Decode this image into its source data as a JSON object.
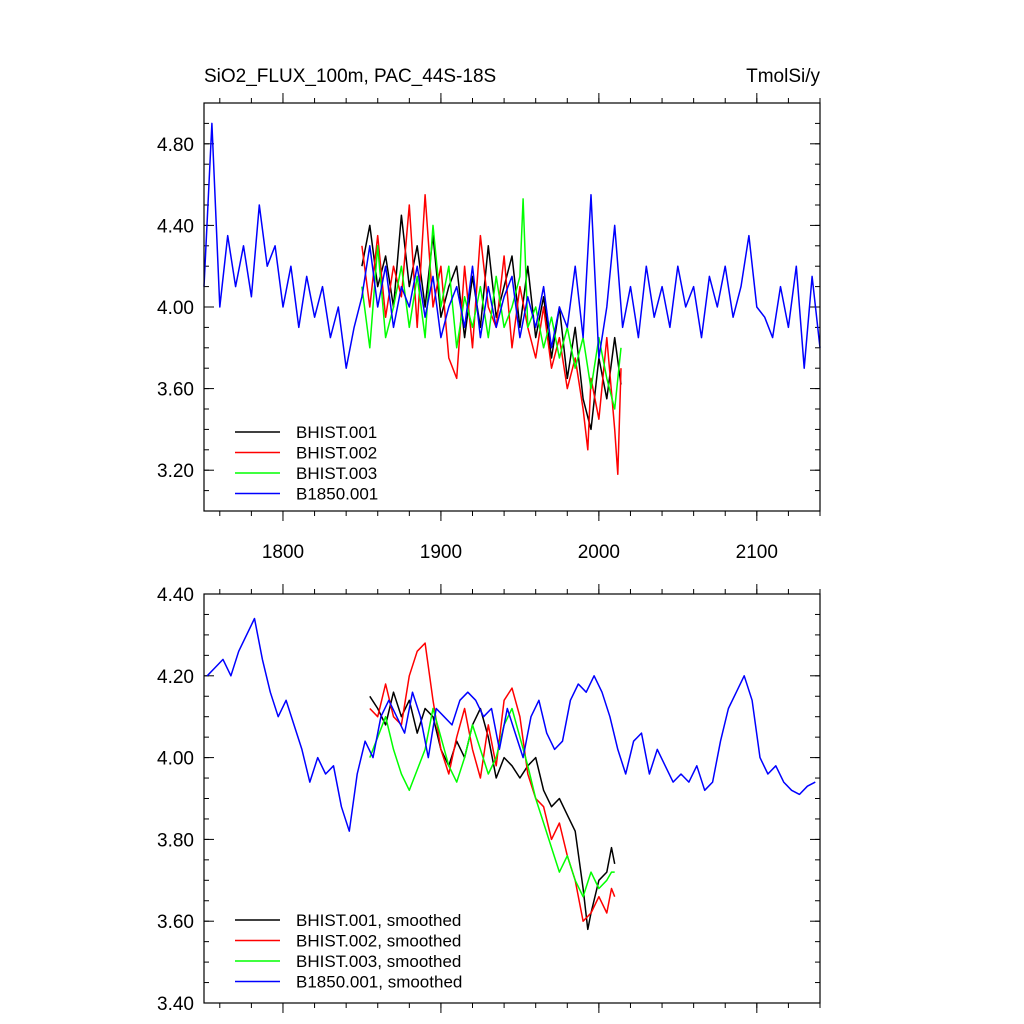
{
  "chart_data": [
    {
      "type": "line",
      "title": "SiO2_FLUX_100m, PAC_44S-18S",
      "units": "TmolSi/y",
      "xlim": [
        1750,
        2140
      ],
      "ylim": [
        3.0,
        5.0
      ],
      "xticks": [
        1800,
        1900,
        2000,
        2100
      ],
      "xtick_labels": [
        "1800",
        "1900",
        "2000",
        "2100"
      ],
      "yticks": [
        3.2,
        3.6,
        4.0,
        4.4,
        4.8
      ],
      "ytick_labels": [
        "3.20",
        "3.60",
        "4.00",
        "4.40",
        "4.80"
      ],
      "legend_position": "bottom-left",
      "series": [
        {
          "name": "BHIST.001",
          "color": "#000000",
          "x": [
            1850,
            1855,
            1860,
            1865,
            1870,
            1875,
            1880,
            1885,
            1890,
            1895,
            1900,
            1905,
            1910,
            1915,
            1920,
            1925,
            1930,
            1935,
            1940,
            1945,
            1950,
            1955,
            1960,
            1965,
            1970,
            1975,
            1980,
            1985,
            1990,
            1995,
            2000,
            2005,
            2010,
            2014
          ],
          "y": [
            4.2,
            4.4,
            4.1,
            4.25,
            4.0,
            4.45,
            4.1,
            4.3,
            4.0,
            4.35,
            3.95,
            4.1,
            4.2,
            3.85,
            4.15,
            3.9,
            4.3,
            3.95,
            4.1,
            4.25,
            3.9,
            4.2,
            3.85,
            4.05,
            3.75,
            4.0,
            3.65,
            3.9,
            3.55,
            3.4,
            3.75,
            3.55,
            3.85,
            3.62
          ]
        },
        {
          "name": "BHIST.002",
          "color": "#ff0000",
          "x": [
            1850,
            1855,
            1860,
            1865,
            1870,
            1875,
            1880,
            1885,
            1890,
            1895,
            1900,
            1905,
            1910,
            1915,
            1920,
            1925,
            1930,
            1935,
            1940,
            1945,
            1950,
            1955,
            1960,
            1965,
            1970,
            1975,
            1980,
            1985,
            1990,
            1993,
            1995,
            2000,
            2005,
            2010,
            2012,
            2014
          ],
          "y": [
            4.3,
            4.0,
            4.35,
            3.95,
            4.2,
            4.05,
            4.5,
            3.9,
            4.55,
            4.0,
            4.2,
            3.75,
            3.65,
            4.2,
            3.8,
            4.35,
            4.0,
            3.9,
            4.25,
            3.8,
            4.1,
            3.9,
            3.75,
            4.0,
            3.7,
            3.85,
            3.6,
            3.75,
            3.5,
            3.3,
            3.65,
            3.45,
            3.85,
            3.4,
            3.18,
            3.7
          ]
        },
        {
          "name": "BHIST.003",
          "color": "#00ff00",
          "x": [
            1850,
            1855,
            1860,
            1865,
            1870,
            1875,
            1880,
            1885,
            1890,
            1895,
            1900,
            1905,
            1910,
            1915,
            1920,
            1925,
            1930,
            1935,
            1940,
            1945,
            1950,
            1952,
            1955,
            1960,
            1965,
            1970,
            1975,
            1980,
            1985,
            1990,
            1995,
            2000,
            2005,
            2010,
            2014
          ],
          "y": [
            4.1,
            3.8,
            4.3,
            3.85,
            4.0,
            4.2,
            3.9,
            4.15,
            3.85,
            4.4,
            4.0,
            4.2,
            3.8,
            4.05,
            3.9,
            4.1,
            3.85,
            4.15,
            3.9,
            4.0,
            4.15,
            4.53,
            3.9,
            4.0,
            3.8,
            3.95,
            3.75,
            3.9,
            3.7,
            3.85,
            3.6,
            3.85,
            3.65,
            3.5,
            3.8
          ]
        },
        {
          "name": "B1850.001",
          "color": "#0000ff",
          "x": [
            1750,
            1755,
            1760,
            1765,
            1770,
            1775,
            1780,
            1785,
            1790,
            1795,
            1800,
            1805,
            1810,
            1815,
            1820,
            1825,
            1830,
            1835,
            1840,
            1845,
            1850,
            1855,
            1860,
            1865,
            1870,
            1875,
            1880,
            1885,
            1890,
            1895,
            1900,
            1905,
            1910,
            1915,
            1920,
            1925,
            1930,
            1935,
            1940,
            1945,
            1950,
            1955,
            1960,
            1965,
            1970,
            1975,
            1980,
            1985,
            1990,
            1995,
            2000,
            2005,
            2010,
            2015,
            2020,
            2025,
            2030,
            2035,
            2040,
            2045,
            2050,
            2055,
            2060,
            2065,
            2070,
            2075,
            2080,
            2085,
            2090,
            2095,
            2100,
            2105,
            2110,
            2115,
            2120,
            2125,
            2130,
            2135,
            2140
          ],
          "y": [
            4.1,
            4.9,
            4.0,
            4.35,
            4.1,
            4.3,
            4.05,
            4.5,
            4.2,
            4.3,
            4.0,
            4.2,
            3.9,
            4.15,
            3.95,
            4.1,
            3.85,
            4.0,
            3.7,
            3.9,
            4.05,
            4.3,
            4.0,
            4.2,
            3.9,
            4.1,
            4.0,
            4.2,
            3.95,
            4.15,
            3.85,
            4.0,
            4.1,
            3.9,
            4.2,
            3.85,
            4.1,
            3.9,
            4.05,
            4.15,
            3.85,
            4.05,
            3.9,
            4.1,
            3.8,
            4.0,
            3.9,
            4.2,
            3.85,
            4.55,
            3.75,
            4.0,
            4.4,
            3.9,
            4.1,
            3.85,
            4.2,
            3.95,
            4.1,
            3.9,
            4.2,
            4.0,
            4.1,
            3.85,
            4.15,
            4.0,
            4.2,
            3.95,
            4.1,
            4.35,
            4.0,
            3.95,
            3.85,
            4.1,
            3.9,
            4.2,
            3.7,
            4.15,
            3.8
          ]
        }
      ]
    },
    {
      "type": "line",
      "xlim": [
        1750,
        2140
      ],
      "ylim": [
        3.4,
        4.4
      ],
      "xticks": [
        1800,
        1900,
        2000,
        2100
      ],
      "yticks": [
        3.4,
        3.6,
        3.8,
        4.0,
        4.2,
        4.4
      ],
      "ytick_labels": [
        "3.40",
        "3.60",
        "3.80",
        "4.00",
        "4.20",
        "4.40"
      ],
      "legend_position": "bottom-left",
      "series": [
        {
          "name": "BHIST.001, smoothed",
          "color": "#000000",
          "x": [
            1855,
            1860,
            1865,
            1870,
            1875,
            1880,
            1885,
            1890,
            1895,
            1900,
            1905,
            1910,
            1915,
            1920,
            1925,
            1930,
            1935,
            1940,
            1945,
            1950,
            1955,
            1960,
            1965,
            1970,
            1975,
            1980,
            1985,
            1990,
            1993,
            1995,
            2000,
            2005,
            2008,
            2010
          ],
          "y": [
            4.15,
            4.12,
            4.08,
            4.16,
            4.1,
            4.14,
            4.06,
            4.12,
            4.1,
            4.02,
            3.98,
            4.04,
            4.0,
            4.08,
            4.12,
            4.05,
            3.95,
            4.0,
            3.98,
            3.95,
            3.98,
            4.0,
            3.92,
            3.88,
            3.9,
            3.86,
            3.82,
            3.68,
            3.58,
            3.62,
            3.7,
            3.72,
            3.78,
            3.74
          ]
        },
        {
          "name": "BHIST.002, smoothed",
          "color": "#ff0000",
          "x": [
            1855,
            1860,
            1865,
            1870,
            1875,
            1880,
            1885,
            1890,
            1895,
            1900,
            1905,
            1910,
            1915,
            1920,
            1925,
            1930,
            1935,
            1940,
            1945,
            1950,
            1955,
            1960,
            1965,
            1970,
            1975,
            1980,
            1985,
            1990,
            1995,
            2000,
            2005,
            2008,
            2010
          ],
          "y": [
            4.12,
            4.1,
            4.18,
            4.1,
            4.08,
            4.2,
            4.26,
            4.28,
            4.14,
            4.02,
            3.96,
            4.05,
            4.12,
            4.02,
            3.95,
            4.08,
            3.98,
            4.14,
            4.17,
            4.1,
            3.96,
            3.9,
            3.88,
            3.8,
            3.84,
            3.76,
            3.7,
            3.6,
            3.62,
            3.66,
            3.62,
            3.68,
            3.66
          ]
        },
        {
          "name": "BHIST.003, smoothed",
          "color": "#00ff00",
          "x": [
            1855,
            1860,
            1865,
            1870,
            1875,
            1880,
            1885,
            1890,
            1895,
            1900,
            1905,
            1910,
            1915,
            1920,
            1925,
            1930,
            1935,
            1940,
            1945,
            1950,
            1955,
            1960,
            1965,
            1970,
            1975,
            1980,
            1985,
            1990,
            1995,
            2000,
            2005,
            2008,
            2010
          ],
          "y": [
            4.0,
            4.05,
            4.1,
            4.02,
            3.96,
            3.92,
            3.97,
            4.02,
            4.12,
            4.05,
            3.98,
            3.94,
            4.0,
            4.08,
            4.02,
            3.96,
            4.0,
            4.08,
            4.12,
            4.05,
            3.98,
            3.9,
            3.84,
            3.78,
            3.72,
            3.76,
            3.7,
            3.66,
            3.72,
            3.68,
            3.7,
            3.72,
            3.72
          ]
        },
        {
          "name": "B1850.001, smoothed",
          "color": "#0000ff",
          "x": [
            1752,
            1757,
            1762,
            1767,
            1772,
            1777,
            1782,
            1787,
            1792,
            1797,
            1802,
            1807,
            1812,
            1817,
            1822,
            1827,
            1832,
            1837,
            1842,
            1847,
            1852,
            1857,
            1862,
            1867,
            1872,
            1877,
            1882,
            1887,
            1892,
            1897,
            1902,
            1907,
            1912,
            1917,
            1922,
            1927,
            1932,
            1937,
            1942,
            1947,
            1952,
            1957,
            1962,
            1967,
            1972,
            1977,
            1982,
            1987,
            1992,
            1997,
            2002,
            2007,
            2012,
            2017,
            2022,
            2027,
            2032,
            2037,
            2042,
            2047,
            2052,
            2057,
            2062,
            2067,
            2072,
            2077,
            2082,
            2087,
            2092,
            2097,
            2102,
            2107,
            2112,
            2117,
            2122,
            2127,
            2132,
            2137
          ],
          "y": [
            4.2,
            4.22,
            4.24,
            4.2,
            4.26,
            4.3,
            4.34,
            4.24,
            4.16,
            4.1,
            4.14,
            4.08,
            4.02,
            3.94,
            4.0,
            3.96,
            3.98,
            3.88,
            3.82,
            3.96,
            4.04,
            4.0,
            4.1,
            4.14,
            4.1,
            4.06,
            4.16,
            4.1,
            4.0,
            4.12,
            4.1,
            4.08,
            4.14,
            4.16,
            4.14,
            4.1,
            4.12,
            4.02,
            4.12,
            4.06,
            4.0,
            4.1,
            4.14,
            4.06,
            4.02,
            4.04,
            4.14,
            4.18,
            4.16,
            4.2,
            4.16,
            4.1,
            4.02,
            3.96,
            4.04,
            4.06,
            3.96,
            4.02,
            3.98,
            3.94,
            3.96,
            3.94,
            3.98,
            3.92,
            3.94,
            4.04,
            4.12,
            4.16,
            4.2,
            4.14,
            4.0,
            3.96,
            3.98,
            3.94,
            3.92,
            3.91,
            3.93,
            3.94
          ]
        }
      ]
    }
  ]
}
